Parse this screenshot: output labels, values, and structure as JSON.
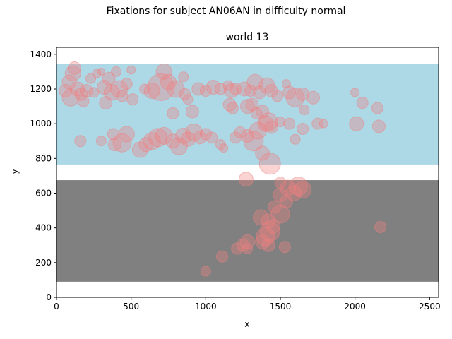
{
  "suptitle": "Fixations for subject AN06AN in difficulty normal",
  "chart_data": {
    "type": "scatter",
    "title": "world 13",
    "xlabel": "x",
    "ylabel": "y",
    "xlim": [
      0,
      2560
    ],
    "ylim": [
      0,
      1440
    ],
    "xticks": [
      0,
      500,
      1000,
      1500,
      2000,
      2500
    ],
    "yticks": [
      0,
      200,
      400,
      600,
      800,
      1000,
      1200,
      1400
    ],
    "grid": false,
    "regions": [
      {
        "color": "#add8e6",
        "x": [
          0,
          2560
        ],
        "y": [
          765,
          1345
        ]
      },
      {
        "color": "#808080",
        "x": [
          0,
          2560
        ],
        "y": [
          90,
          675
        ]
      }
    ],
    "marker_color": "#f08080",
    "marker_alpha": 0.35,
    "points": [
      {
        "x": 120,
        "y": 1320,
        "s": 9
      },
      {
        "x": 110,
        "y": 1290,
        "s": 11
      },
      {
        "x": 85,
        "y": 1240,
        "s": 10
      },
      {
        "x": 60,
        "y": 1190,
        "s": 9
      },
      {
        "x": 95,
        "y": 1150,
        "s": 12
      },
      {
        "x": 140,
        "y": 1200,
        "s": 10
      },
      {
        "x": 165,
        "y": 1170,
        "s": 9
      },
      {
        "x": 180,
        "y": 1130,
        "s": 8
      },
      {
        "x": 200,
        "y": 1190,
        "s": 9
      },
      {
        "x": 230,
        "y": 1260,
        "s": 7
      },
      {
        "x": 270,
        "y": 1290,
        "s": 6
      },
      {
        "x": 300,
        "y": 1300,
        "s": 5
      },
      {
        "x": 250,
        "y": 1180,
        "s": 7
      },
      {
        "x": 320,
        "y": 1210,
        "s": 10
      },
      {
        "x": 350,
        "y": 1260,
        "s": 9
      },
      {
        "x": 400,
        "y": 1300,
        "s": 7
      },
      {
        "x": 420,
        "y": 1200,
        "s": 12
      },
      {
        "x": 440,
        "y": 1160,
        "s": 8
      },
      {
        "x": 470,
        "y": 1230,
        "s": 8
      },
      {
        "x": 510,
        "y": 1140,
        "s": 8
      },
      {
        "x": 500,
        "y": 1310,
        "s": 6
      },
      {
        "x": 330,
        "y": 1120,
        "s": 9
      },
      {
        "x": 370,
        "y": 1180,
        "s": 11
      },
      {
        "x": 590,
        "y": 1200,
        "s": 7
      },
      {
        "x": 640,
        "y": 1190,
        "s": 11
      },
      {
        "x": 700,
        "y": 1210,
        "s": 19
      },
      {
        "x": 720,
        "y": 1300,
        "s": 11
      },
      {
        "x": 750,
        "y": 1240,
        "s": 11
      },
      {
        "x": 800,
        "y": 1200,
        "s": 12
      },
      {
        "x": 860,
        "y": 1170,
        "s": 8
      },
      {
        "x": 850,
        "y": 1270,
        "s": 7
      },
      {
        "x": 880,
        "y": 1140,
        "s": 7
      },
      {
        "x": 950,
        "y": 1200,
        "s": 9
      },
      {
        "x": 1000,
        "y": 1190,
        "s": 8
      },
      {
        "x": 1050,
        "y": 1210,
        "s": 10
      },
      {
        "x": 1100,
        "y": 1200,
        "s": 8
      },
      {
        "x": 1150,
        "y": 1220,
        "s": 7
      },
      {
        "x": 1170,
        "y": 1190,
        "s": 10
      },
      {
        "x": 1200,
        "y": 1200,
        "s": 8
      },
      {
        "x": 1160,
        "y": 1110,
        "s": 9
      },
      {
        "x": 1180,
        "y": 1090,
        "s": 8
      },
      {
        "x": 1260,
        "y": 1200,
        "s": 10
      },
      {
        "x": 1300,
        "y": 1190,
        "s": 8
      },
      {
        "x": 1330,
        "y": 1240,
        "s": 11
      },
      {
        "x": 1360,
        "y": 1180,
        "s": 9
      },
      {
        "x": 1410,
        "y": 1220,
        "s": 11
      },
      {
        "x": 1440,
        "y": 1190,
        "s": 9
      },
      {
        "x": 1480,
        "y": 1160,
        "s": 8
      },
      {
        "x": 1540,
        "y": 1230,
        "s": 6
      },
      {
        "x": 1560,
        "y": 1180,
        "s": 9
      },
      {
        "x": 1600,
        "y": 1150,
        "s": 13
      },
      {
        "x": 1650,
        "y": 1170,
        "s": 9
      },
      {
        "x": 1720,
        "y": 1150,
        "s": 9
      },
      {
        "x": 1660,
        "y": 1080,
        "s": 7
      },
      {
        "x": 1280,
        "y": 1100,
        "s": 10
      },
      {
        "x": 1310,
        "y": 1110,
        "s": 9
      },
      {
        "x": 1340,
        "y": 1060,
        "s": 8
      },
      {
        "x": 1380,
        "y": 1070,
        "s": 9
      },
      {
        "x": 1420,
        "y": 1010,
        "s": 13
      },
      {
        "x": 1440,
        "y": 980,
        "s": 9
      },
      {
        "x": 1500,
        "y": 1010,
        "s": 7
      },
      {
        "x": 1560,
        "y": 1000,
        "s": 8
      },
      {
        "x": 1650,
        "y": 970,
        "s": 8
      },
      {
        "x": 1750,
        "y": 1000,
        "s": 8
      },
      {
        "x": 1790,
        "y": 1000,
        "s": 6
      },
      {
        "x": 2000,
        "y": 1180,
        "s": 6
      },
      {
        "x": 2050,
        "y": 1120,
        "s": 8
      },
      {
        "x": 2150,
        "y": 1090,
        "s": 8
      },
      {
        "x": 2010,
        "y": 1000,
        "s": 10
      },
      {
        "x": 2160,
        "y": 985,
        "s": 9
      },
      {
        "x": 780,
        "y": 1060,
        "s": 8
      },
      {
        "x": 910,
        "y": 1070,
        "s": 9
      },
      {
        "x": 160,
        "y": 900,
        "s": 8
      },
      {
        "x": 300,
        "y": 900,
        "s": 7
      },
      {
        "x": 380,
        "y": 940,
        "s": 8
      },
      {
        "x": 390,
        "y": 880,
        "s": 9
      },
      {
        "x": 440,
        "y": 890,
        "s": 13
      },
      {
        "x": 470,
        "y": 940,
        "s": 11
      },
      {
        "x": 560,
        "y": 850,
        "s": 11
      },
      {
        "x": 600,
        "y": 880,
        "s": 10
      },
      {
        "x": 640,
        "y": 900,
        "s": 12
      },
      {
        "x": 680,
        "y": 920,
        "s": 13
      },
      {
        "x": 720,
        "y": 930,
        "s": 12
      },
      {
        "x": 780,
        "y": 900,
        "s": 10
      },
      {
        "x": 820,
        "y": 870,
        "s": 12
      },
      {
        "x": 850,
        "y": 930,
        "s": 11
      },
      {
        "x": 880,
        "y": 910,
        "s": 10
      },
      {
        "x": 920,
        "y": 950,
        "s": 12
      },
      {
        "x": 960,
        "y": 920,
        "s": 9
      },
      {
        "x": 1000,
        "y": 940,
        "s": 8
      },
      {
        "x": 1040,
        "y": 920,
        "s": 8
      },
      {
        "x": 1100,
        "y": 880,
        "s": 7
      },
      {
        "x": 1120,
        "y": 860,
        "s": 6
      },
      {
        "x": 1200,
        "y": 920,
        "s": 8
      },
      {
        "x": 1230,
        "y": 950,
        "s": 8
      },
      {
        "x": 1280,
        "y": 930,
        "s": 9
      },
      {
        "x": 1320,
        "y": 900,
        "s": 14
      },
      {
        "x": 1350,
        "y": 960,
        "s": 12
      },
      {
        "x": 1400,
        "y": 1000,
        "s": 11
      },
      {
        "x": 1380,
        "y": 830,
        "s": 10
      },
      {
        "x": 1430,
        "y": 770,
        "s": 15
      },
      {
        "x": 1600,
        "y": 910,
        "s": 7
      },
      {
        "x": 1270,
        "y": 680,
        "s": 10
      },
      {
        "x": 1500,
        "y": 660,
        "s": 8
      },
      {
        "x": 1550,
        "y": 630,
        "s": 11
      },
      {
        "x": 1590,
        "y": 600,
        "s": 11
      },
      {
        "x": 1620,
        "y": 640,
        "s": 13
      },
      {
        "x": 1650,
        "y": 620,
        "s": 12
      },
      {
        "x": 1500,
        "y": 590,
        "s": 10
      },
      {
        "x": 1540,
        "y": 550,
        "s": 9
      },
      {
        "x": 1460,
        "y": 520,
        "s": 9
      },
      {
        "x": 1500,
        "y": 480,
        "s": 13
      },
      {
        "x": 1370,
        "y": 460,
        "s": 11
      },
      {
        "x": 1420,
        "y": 440,
        "s": 10
      },
      {
        "x": 1450,
        "y": 410,
        "s": 10
      },
      {
        "x": 1430,
        "y": 380,
        "s": 14
      },
      {
        "x": 1400,
        "y": 350,
        "s": 13
      },
      {
        "x": 1380,
        "y": 320,
        "s": 10
      },
      {
        "x": 1420,
        "y": 300,
        "s": 9
      },
      {
        "x": 1280,
        "y": 320,
        "s": 10
      },
      {
        "x": 1250,
        "y": 300,
        "s": 9
      },
      {
        "x": 1210,
        "y": 280,
        "s": 8
      },
      {
        "x": 1280,
        "y": 280,
        "s": 7
      },
      {
        "x": 1530,
        "y": 290,
        "s": 8
      },
      {
        "x": 1110,
        "y": 235,
        "s": 8
      },
      {
        "x": 1000,
        "y": 150,
        "s": 7
      },
      {
        "x": 2170,
        "y": 405,
        "s": 8
      }
    ]
  }
}
